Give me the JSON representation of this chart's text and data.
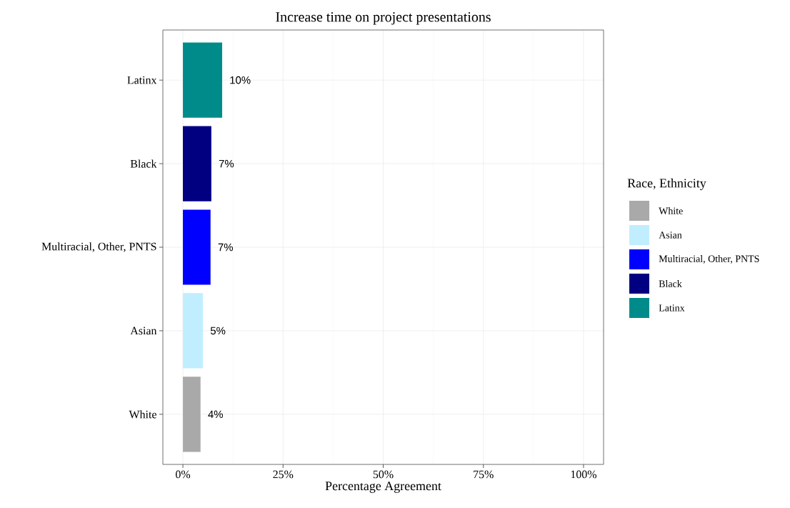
{
  "chart_data": {
    "type": "bar",
    "orientation": "horizontal",
    "title": "Increase time on project presentations",
    "xlabel": "Percentage Agreement",
    "legend_title": "Race, Ethnicity",
    "categories": [
      "Latinx",
      "Black",
      "Multiracial, Other, PNTS",
      "Asian",
      "White"
    ],
    "series": [
      {
        "name": "White",
        "color": "#a9a9a9",
        "values": [
          null,
          null,
          null,
          null,
          4.4
        ],
        "value_labels": [
          null,
          null,
          null,
          null,
          "4%"
        ]
      },
      {
        "name": "Asian",
        "color": "#c1eefe",
        "values": [
          null,
          null,
          null,
          5.0,
          null
        ],
        "value_labels": [
          null,
          null,
          null,
          "5%",
          null
        ]
      },
      {
        "name": "Multiracial, Other, PNTS",
        "color": "#0000ff",
        "values": [
          null,
          null,
          6.9,
          null,
          null
        ],
        "value_labels": [
          null,
          null,
          "7%",
          null,
          null
        ]
      },
      {
        "name": "Black",
        "color": "#000080",
        "values": [
          null,
          7.1,
          null,
          null,
          null
        ],
        "value_labels": [
          null,
          "7%",
          null,
          null,
          null
        ]
      },
      {
        "name": "Latinx",
        "color": "#008b8b",
        "values": [
          9.8,
          null,
          null,
          null,
          null
        ],
        "value_labels": [
          "10%",
          null,
          null,
          null,
          null
        ]
      }
    ],
    "xlim": [
      -5,
      105
    ],
    "xticks": [
      {
        "value": 0,
        "label": "0%"
      },
      {
        "value": 25,
        "label": "25%"
      },
      {
        "value": 50,
        "label": "50%"
      },
      {
        "value": 75,
        "label": "75%"
      },
      {
        "value": 100,
        "label": "100%"
      }
    ],
    "grid": true,
    "legend": "right"
  }
}
